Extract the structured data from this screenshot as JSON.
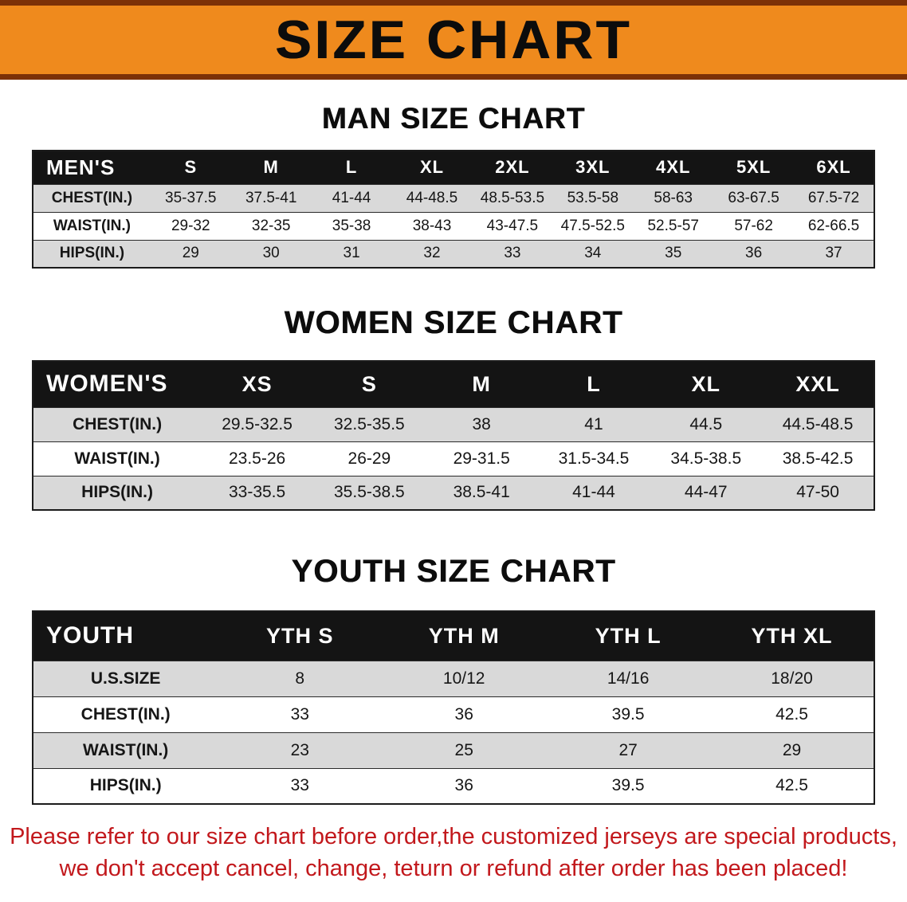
{
  "banner": {
    "title": "SIZE CHART",
    "bg_color": "#ef8a1d",
    "edge_color": "#7c3107",
    "text_color": "#0c0c0c"
  },
  "sections": [
    {
      "heading": "MAN SIZE CHART",
      "table": {
        "header": [
          "MEN'S",
          "S",
          "M",
          "L",
          "XL",
          "2XL",
          "3XL",
          "4XL",
          "5XL",
          "6XL"
        ],
        "rows": [
          [
            "CHEST(IN.)",
            "35-37.5",
            "37.5-41",
            "41-44",
            "44-48.5",
            "48.5-53.5",
            "53.5-58",
            "58-63",
            "63-67.5",
            "67.5-72"
          ],
          [
            "WAIST(IN.)",
            "29-32",
            "32-35",
            "35-38",
            "38-43",
            "43-47.5",
            "47.5-52.5",
            "52.5-57",
            "57-62",
            "62-66.5"
          ],
          [
            "HIPS(IN.)",
            "29",
            "30",
            "31",
            "32",
            "33",
            "34",
            "35",
            "36",
            "37"
          ]
        ]
      }
    },
    {
      "heading": "WOMEN SIZE CHART",
      "table": {
        "header": [
          "WOMEN'S",
          "XS",
          "S",
          "M",
          "L",
          "XL",
          "XXL"
        ],
        "rows": [
          [
            "CHEST(IN.)",
            "29.5-32.5",
            "32.5-35.5",
            "38",
            "41",
            "44.5",
            "44.5-48.5"
          ],
          [
            "WAIST(IN.)",
            "23.5-26",
            "26-29",
            "29-31.5",
            "31.5-34.5",
            "34.5-38.5",
            "38.5-42.5"
          ],
          [
            "HIPS(IN.)",
            "33-35.5",
            "35.5-38.5",
            "38.5-41",
            "41-44",
            "44-47",
            "47-50"
          ]
        ]
      }
    },
    {
      "heading": "YOUTH SIZE CHART",
      "table": {
        "header": [
          "YOUTH",
          "YTH S",
          "YTH M",
          "YTH L",
          "YTH XL"
        ],
        "rows": [
          [
            "U.S.SIZE",
            "8",
            "10/12",
            "14/16",
            "18/20"
          ],
          [
            "CHEST(IN.)",
            "33",
            "36",
            "39.5",
            "42.5"
          ],
          [
            "WAIST(IN.)",
            "23",
            "25",
            "27",
            "29"
          ],
          [
            "HIPS(IN.)",
            "33",
            "36",
            "39.5",
            "42.5"
          ]
        ]
      }
    }
  ],
  "footer": {
    "line1": "Please refer to our size chart before order,the customized jerseys are special products,",
    "line2": "we don't accept cancel, change, teturn or refund after order has been placed!",
    "text_color": "#c2181c"
  },
  "colors": {
    "header_bar": "#141414",
    "row_gray": "#d9d9d9",
    "row_white": "#ffffff"
  }
}
